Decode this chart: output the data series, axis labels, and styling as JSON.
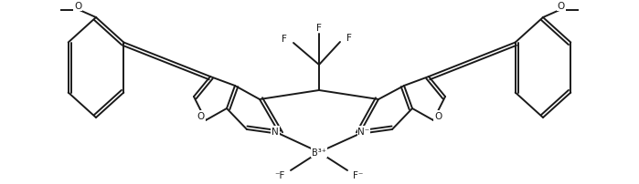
{
  "bg_color": "#ffffff",
  "line_color": "#1a1a1a",
  "lw": 1.4,
  "figsize": [
    6.99,
    2.03
  ],
  "dpi": 100,
  "xlim": [
    0,
    699
  ],
  "ylim": [
    0,
    203
  ]
}
